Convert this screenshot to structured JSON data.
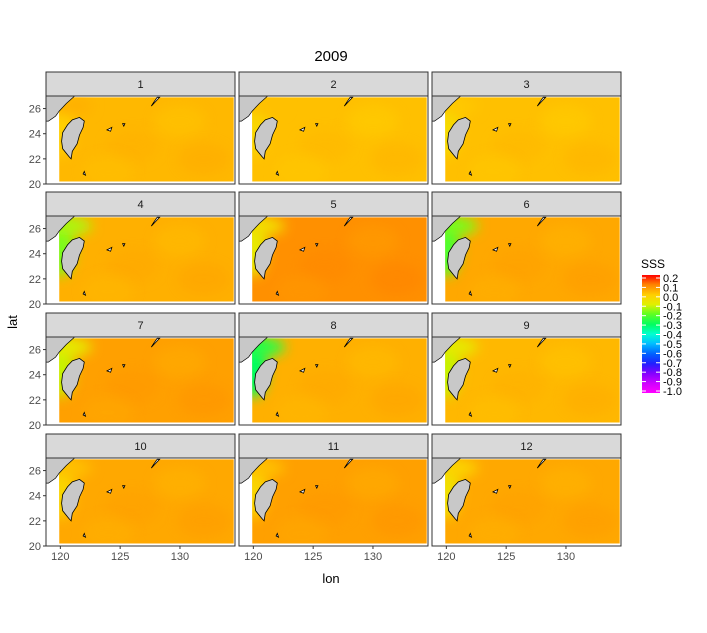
{
  "chart_data": {
    "type": "heatmap",
    "title": "2009",
    "xlabel": "lon",
    "ylabel": "lat",
    "panels": [
      "1",
      "2",
      "3",
      "4",
      "5",
      "6",
      "7",
      "8",
      "9",
      "10",
      "11",
      "12"
    ],
    "x_ticks": [
      120,
      125,
      130
    ],
    "y_ticks": [
      20,
      22,
      24,
      26
    ],
    "xlim": [
      118.8,
      134.6
    ],
    "ylim": [
      20.0,
      27.0
    ],
    "data_xlim": [
      119.9,
      134.5
    ],
    "data_ylim": [
      20.2,
      26.9
    ],
    "legend": {
      "title": "SSS",
      "position": "right",
      "labels": [
        "0.2",
        "0.1",
        "0.0",
        "-0.1",
        "-0.2",
        "-0.3",
        "-0.4",
        "-0.5",
        "-0.6",
        "-0.7",
        "-0.8",
        "-0.9",
        "-1.0"
      ],
      "range": [
        -1.0,
        0.2
      ]
    },
    "panel_values": {
      "1": {
        "base": 0.03,
        "coastal": 0.0
      },
      "2": {
        "base": 0.02,
        "coastal": -0.02
      },
      "3": {
        "base": 0.02,
        "coastal": -0.03
      },
      "4": {
        "base": 0.04,
        "coastal": -0.18
      },
      "5": {
        "base": 0.08,
        "coastal": -0.08
      },
      "6": {
        "base": 0.05,
        "coastal": -0.22
      },
      "7": {
        "base": 0.06,
        "coastal": -0.12
      },
      "8": {
        "base": 0.04,
        "coastal": -0.3
      },
      "9": {
        "base": 0.03,
        "coastal": -0.12
      },
      "10": {
        "base": 0.05,
        "coastal": -0.02
      },
      "11": {
        "base": 0.06,
        "coastal": -0.02
      },
      "12": {
        "base": 0.05,
        "coastal": -0.05
      }
    },
    "colors": {
      "panel_border": "#333333",
      "strip_fill": "#d9d9d9",
      "land_fill": "#c8c8c8"
    }
  }
}
